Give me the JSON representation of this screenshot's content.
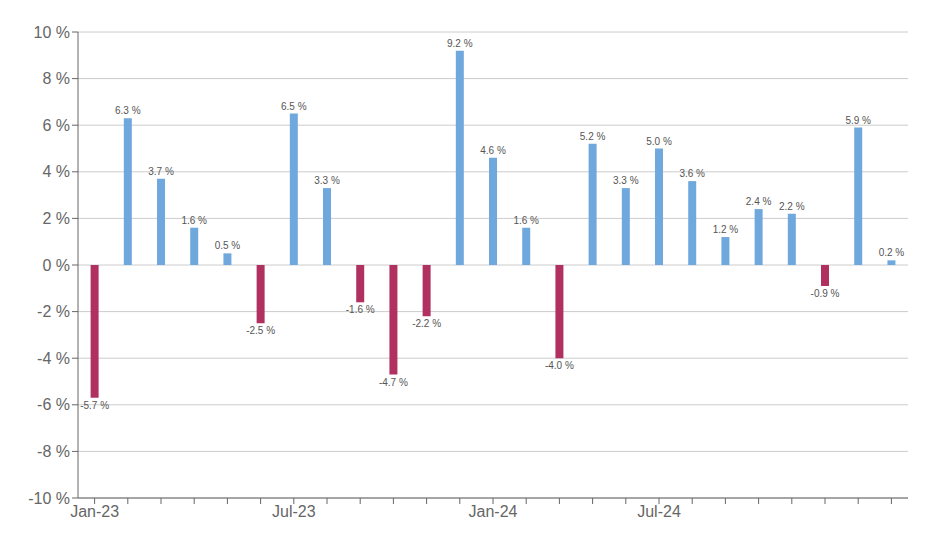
{
  "chart_data": {
    "type": "bar",
    "categories": [
      "Jan-23",
      null,
      null,
      null,
      null,
      null,
      "Jul-23",
      null,
      null,
      null,
      null,
      null,
      "Jan-24",
      null,
      null,
      null,
      null,
      "Jul-24",
      null,
      null,
      null,
      null,
      null,
      null,
      null
    ],
    "values": [
      -5.7,
      6.3,
      3.7,
      1.6,
      0.5,
      -2.5,
      6.5,
      3.3,
      -1.6,
      -4.7,
      -2.2,
      9.2,
      4.6,
      1.6,
      -4.0,
      5.2,
      3.3,
      5.0,
      3.6,
      1.2,
      2.4,
      2.2,
      -0.9,
      5.9,
      0.2
    ],
    "value_labels": [
      "-5.7 %",
      "6.3 %",
      "3.7 %",
      "1.6 %",
      "0.5 %",
      "-2.5 %",
      "6.5 %",
      "3.3 %",
      "-1.6 %",
      "-4.7 %",
      "-2.2 %",
      "9.2 %",
      "4.6 %",
      "1.6 %",
      "-4.0 %",
      "5.2 %",
      "3.3 %",
      "5.0 %",
      "3.6 %",
      "1.2 %",
      "2.4 %",
      "2.2 %",
      "-0.9 %",
      "5.9 %",
      "0.2 %"
    ],
    "colors": [
      "#b03060",
      "#6fa8dc",
      "#6fa8dc",
      "#6fa8dc",
      "#6fa8dc",
      "#b03060",
      "#6fa8dc",
      "#6fa8dc",
      "#b03060",
      "#b03060",
      "#b03060",
      "#6fa8dc",
      "#6fa8dc",
      "#6fa8dc",
      "#b03060",
      "#6fa8dc",
      "#6fa8dc",
      "#6fa8dc",
      "#6fa8dc",
      "#6fa8dc",
      "#6fa8dc",
      "#6fa8dc",
      "#b03060",
      "#6fa8dc",
      "#6fa8dc"
    ],
    "ylim": [
      -10,
      10
    ],
    "yticks": [
      {
        "value": -10,
        "label": "-10 %"
      },
      {
        "value": -8,
        "label": "-8 %"
      },
      {
        "value": -6,
        "label": "-6 %"
      },
      {
        "value": -4,
        "label": "-4 %"
      },
      {
        "value": -2,
        "label": "-2 %"
      },
      {
        "value": 0,
        "label": "0 %"
      },
      {
        "value": 2,
        "label": "2 %"
      },
      {
        "value": 4,
        "label": "4 %"
      },
      {
        "value": 6,
        "label": "6 %"
      },
      {
        "value": 8,
        "label": "8 %"
      },
      {
        "value": 10,
        "label": "10 %"
      }
    ],
    "grid": true,
    "data_labels": true
  }
}
